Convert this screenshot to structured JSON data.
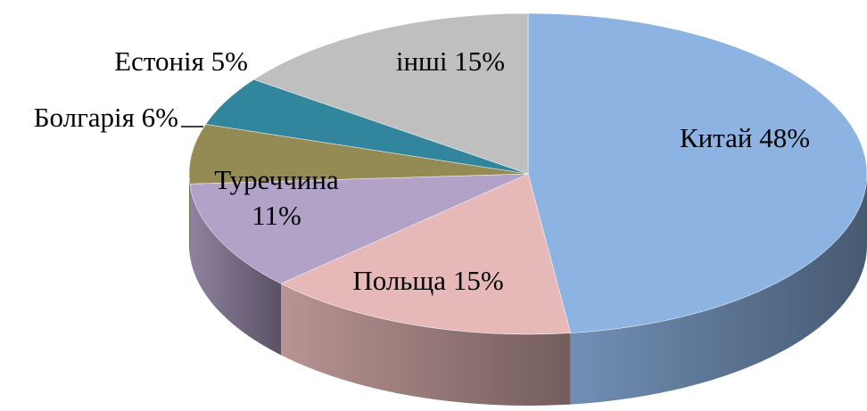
{
  "chart_data": {
    "type": "pie3d",
    "categories": [
      "Китай",
      "Польща",
      "Туреччина",
      "Болгарія",
      "Естонія",
      "інші"
    ],
    "values": [
      48,
      15,
      11,
      6,
      5,
      15
    ],
    "value_labels": [
      "48%",
      "15%",
      "11%",
      "6%",
      "5%",
      "15%"
    ],
    "colors": [
      "#8db3e2",
      "#e6b9b8",
      "#b3a2c7",
      "#948a54",
      "#31859c",
      "#bfbfbf"
    ]
  }
}
